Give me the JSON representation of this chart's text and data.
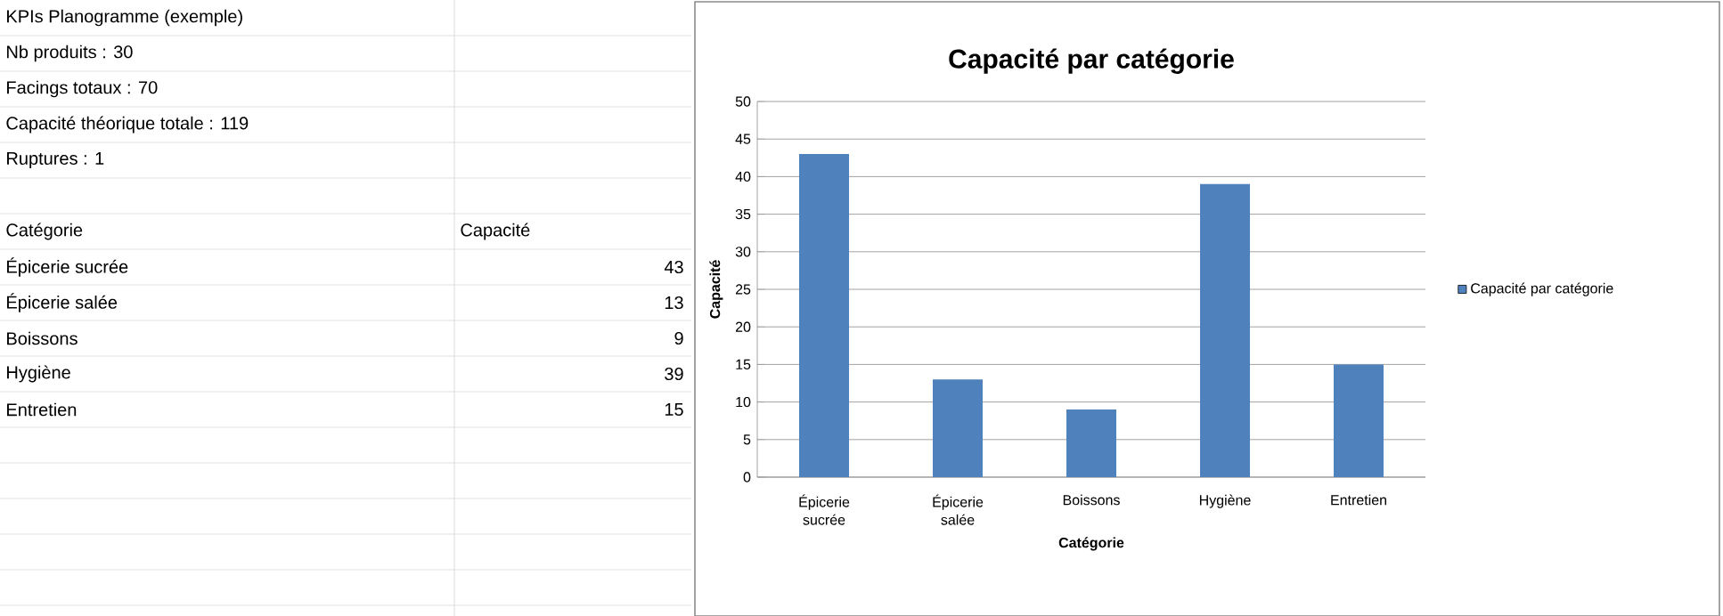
{
  "chart_data": {
    "type": "bar",
    "title": "Capacité par catégorie",
    "xlabel": "Catégorie",
    "ylabel": "Capacité",
    "categories": [
      "Épicerie sucrée",
      "Épicerie salée",
      "Boissons",
      "Hygiène",
      "Entretien"
    ],
    "series": [
      {
        "name": "Capacité par catégorie",
        "color": "#4f81bd",
        "values": [
          43,
          13,
          9,
          39,
          15
        ]
      }
    ],
    "ylim": [
      0,
      50
    ],
    "yticks": [
      0,
      5,
      10,
      15,
      20,
      25,
      30,
      35,
      40,
      45,
      50
    ],
    "grid": "y",
    "legend": "right",
    "annotations": [
      "KPIs Planogramme (exemple)",
      "Nb produits : 30",
      "Facings totaux : 70",
      "Capacité théorique totale : 119",
      "Ruptures : 1",
      "Catégorie",
      "Capacité",
      "Épicerie sucrée",
      "43",
      "Épicerie salée",
      "13",
      "Boissons",
      "9",
      "Hygiène",
      "39",
      "Entretien",
      "15"
    ]
  }
}
